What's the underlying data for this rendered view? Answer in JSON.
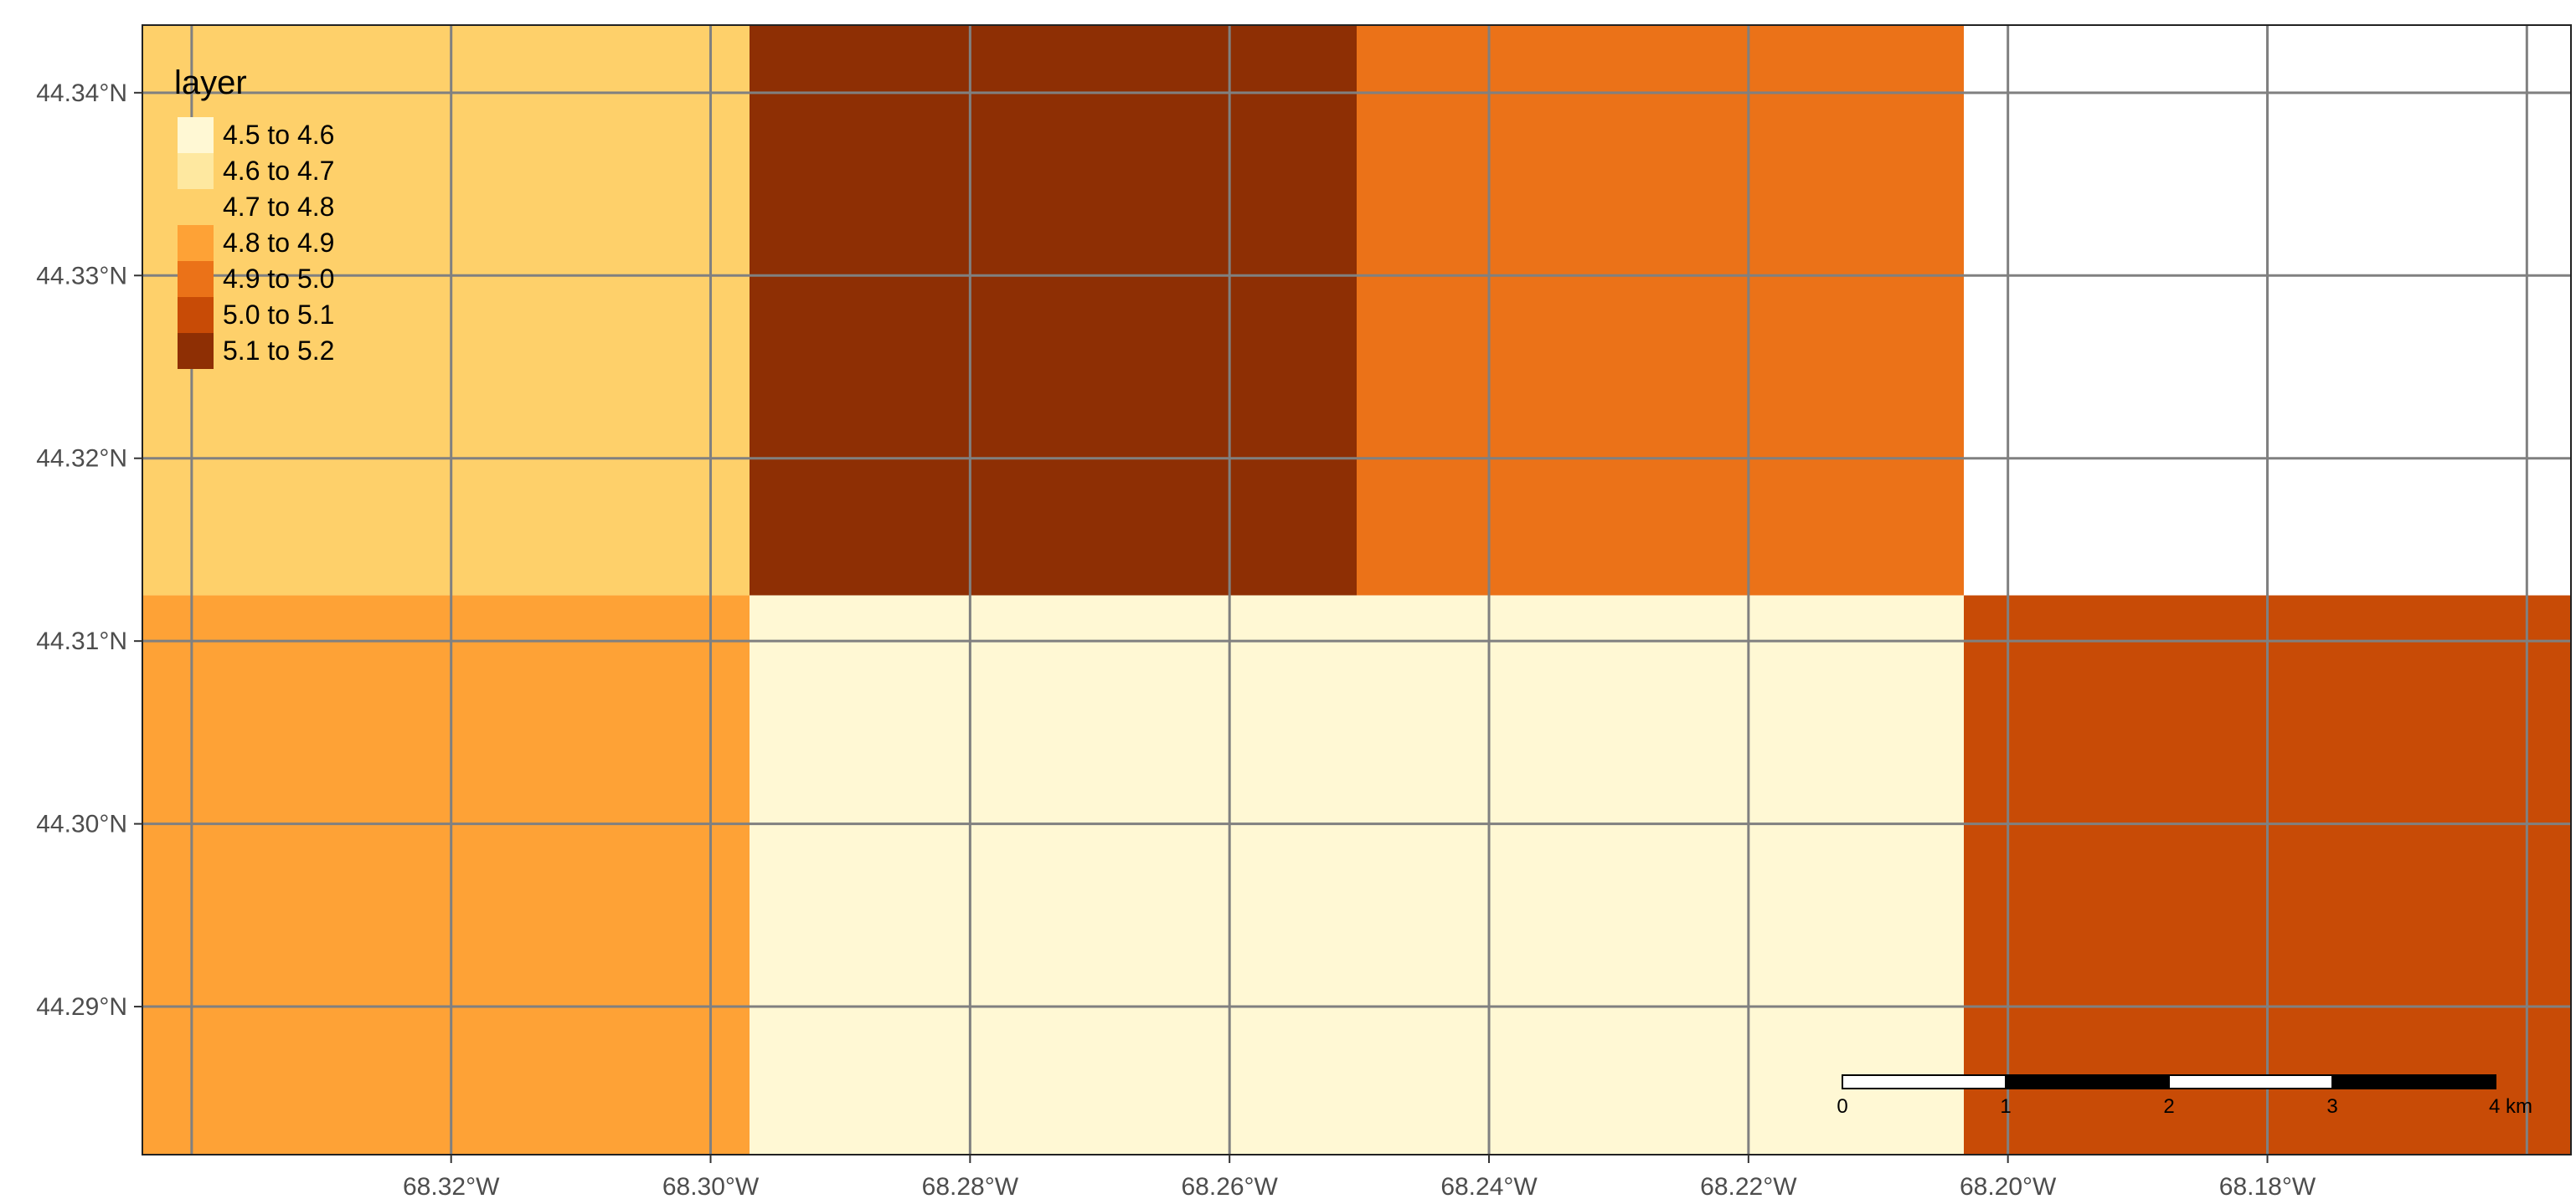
{
  "legend": {
    "title": "layer",
    "entries": [
      {
        "label": "4.5 to 4.6",
        "color": "#FFF8D4"
      },
      {
        "label": "4.6 to 4.7",
        "color": "#FEE8A0"
      },
      {
        "label": "4.7 to 4.8",
        "color": "#FED06A"
      },
      {
        "label": "4.8 to 4.9",
        "color": "#FEA236"
      },
      {
        "label": "4.9 to 5.0",
        "color": "#EB7218"
      },
      {
        "label": "5.0 to 5.1",
        "color": "#C84B06"
      },
      {
        "label": "5.1 to 5.2",
        "color": "#8E2F04"
      }
    ]
  },
  "axes": {
    "lon_range": [
      -68.3438,
      -68.1566
    ],
    "lat_range": [
      44.2819,
      44.3437
    ],
    "x_ticks": [
      {
        "value": -68.32,
        "label": "68.32°W"
      },
      {
        "value": -68.3,
        "label": "68.30°W"
      },
      {
        "value": -68.28,
        "label": "68.28°W"
      },
      {
        "value": -68.26,
        "label": "68.26°W"
      },
      {
        "value": -68.24,
        "label": "68.24°W"
      },
      {
        "value": -68.22,
        "label": "68.22°W"
      },
      {
        "value": -68.2,
        "label": "68.20°W"
      },
      {
        "value": -68.18,
        "label": "68.18°W"
      }
    ],
    "y_ticks": [
      {
        "value": 44.34,
        "label": "44.34°N"
      },
      {
        "value": 44.33,
        "label": "44.33°N"
      },
      {
        "value": 44.32,
        "label": "44.32°N"
      },
      {
        "value": 44.31,
        "label": "44.31°N"
      },
      {
        "value": 44.3,
        "label": "44.30°N"
      },
      {
        "value": 44.29,
        "label": "44.29°N"
      }
    ],
    "extra_meridians": [
      -68.34,
      -68.16
    ],
    "grid": true,
    "grid_color": "#808080"
  },
  "raster": {
    "cells": [
      {
        "lon": [
          -68.3438,
          -68.297
        ],
        "lat": [
          44.3125,
          44.3437
        ],
        "class": "4.7 to 4.8",
        "color": "#FED06A"
      },
      {
        "lon": [
          -68.297,
          -68.2502
        ],
        "lat": [
          44.3125,
          44.3437
        ],
        "class": "5.1 to 5.2",
        "color": "#8E2F04"
      },
      {
        "lon": [
          -68.2502,
          -68.2034
        ],
        "lat": [
          44.3125,
          44.3437
        ],
        "class": "4.9 to 5.0",
        "color": "#EB7218"
      },
      {
        "lon": [
          -68.3438,
          -68.297
        ],
        "lat": [
          44.2819,
          44.3125
        ],
        "class": "4.8 to 4.9",
        "color": "#FEA236"
      },
      {
        "lon": [
          -68.297,
          -68.2034
        ],
        "lat": [
          44.2819,
          44.3125
        ],
        "class": "4.5 to 4.6",
        "color": "#FFF8D4"
      },
      {
        "lon": [
          -68.2034,
          -68.1566
        ],
        "lat": [
          44.2819,
          44.3125
        ],
        "class": "5.0 to 5.1",
        "color": "#C84B06"
      }
    ]
  },
  "scale_bar": {
    "labels": [
      "0",
      "1",
      "2",
      "3"
    ],
    "end_label": "4 km",
    "segment_colors": [
      "#FFFFFF",
      "#000000",
      "#FFFFFF",
      "#000000"
    ]
  }
}
